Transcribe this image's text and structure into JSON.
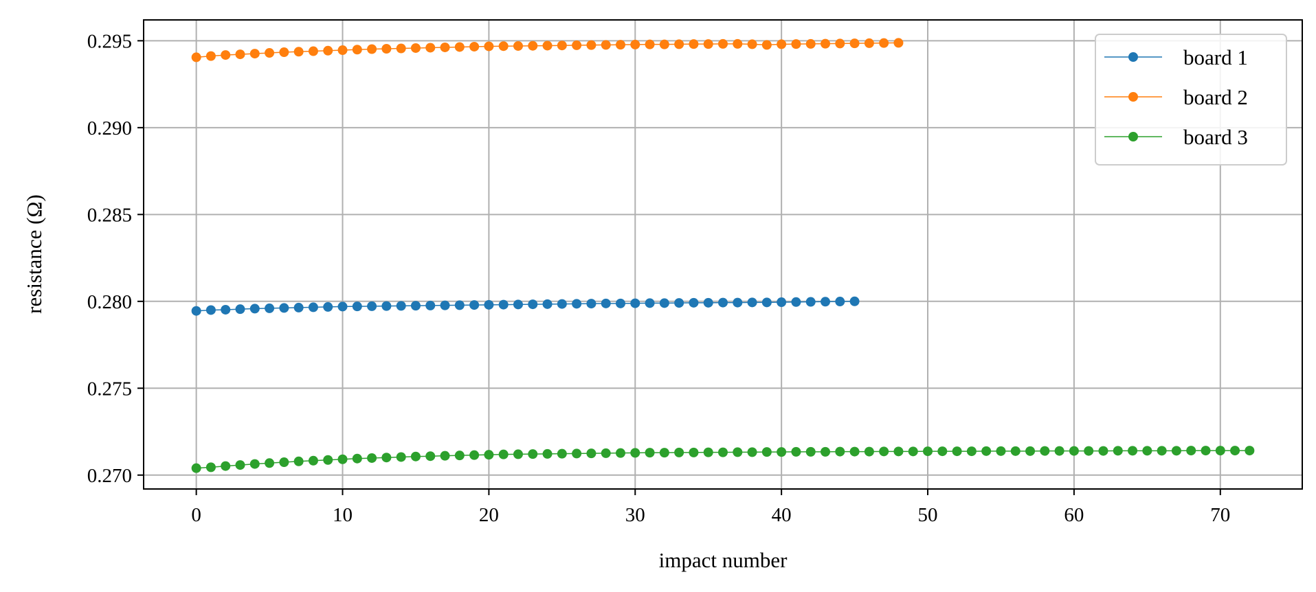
{
  "chart_data": {
    "type": "line",
    "title": "",
    "xlabel": "impact number",
    "ylabel": "resistance (Ω)",
    "xlim": [
      -3.6,
      75.6
    ],
    "ylim": [
      0.2692,
      0.2962
    ],
    "xticks": [
      0,
      10,
      20,
      30,
      40,
      50,
      60,
      70
    ],
    "xtick_labels": [
      "0",
      "10",
      "20",
      "30",
      "40",
      "50",
      "60",
      "70"
    ],
    "yticks": [
      0.27,
      0.275,
      0.28,
      0.285,
      0.29,
      0.295
    ],
    "ytick_labels": [
      "0.270",
      "0.275",
      "0.280",
      "0.285",
      "0.290",
      "0.295"
    ],
    "grid": true,
    "legend_position": "top-right",
    "series": [
      {
        "name": "board 1",
        "color": "#1f77b4",
        "x_start": 0,
        "values": [
          0.27945,
          0.2795,
          0.27952,
          0.27955,
          0.27958,
          0.2796,
          0.27962,
          0.27964,
          0.27966,
          0.27968,
          0.2797,
          0.27971,
          0.27972,
          0.27973,
          0.27974,
          0.27975,
          0.27976,
          0.27977,
          0.27978,
          0.27979,
          0.2798,
          0.27981,
          0.27982,
          0.27983,
          0.27984,
          0.27985,
          0.27986,
          0.27987,
          0.27988,
          0.27988,
          0.27989,
          0.2799,
          0.2799,
          0.27991,
          0.27992,
          0.27992,
          0.27993,
          0.27993,
          0.27994,
          0.27994,
          0.27995,
          0.27996,
          0.27997,
          0.27998,
          0.27999,
          0.28
        ]
      },
      {
        "name": "board 2",
        "color": "#ff7f0e",
        "x_start": 0,
        "values": [
          0.29405,
          0.29412,
          0.29418,
          0.29422,
          0.29426,
          0.2943,
          0.29434,
          0.29437,
          0.2944,
          0.29443,
          0.29446,
          0.29449,
          0.29452,
          0.29454,
          0.29456,
          0.29458,
          0.2946,
          0.29462,
          0.29464,
          0.29466,
          0.29468,
          0.29469,
          0.2947,
          0.29471,
          0.29472,
          0.29473,
          0.29474,
          0.29475,
          0.29476,
          0.29477,
          0.29478,
          0.29479,
          0.29479,
          0.2948,
          0.29481,
          0.29481,
          0.29482,
          0.29482,
          0.2948,
          0.29476,
          0.2948,
          0.29481,
          0.29482,
          0.29483,
          0.29484,
          0.29485,
          0.29486,
          0.29487,
          0.29488
        ]
      },
      {
        "name": "board 3",
        "color": "#2ca02c",
        "x_start": 0,
        "values": [
          0.2704,
          0.27045,
          0.27052,
          0.27058,
          0.27064,
          0.27069,
          0.27074,
          0.27079,
          0.27083,
          0.27087,
          0.27091,
          0.27095,
          0.27098,
          0.27101,
          0.27104,
          0.27107,
          0.27109,
          0.27111,
          0.27113,
          0.27115,
          0.27117,
          0.27119,
          0.2712,
          0.27121,
          0.27122,
          0.27123,
          0.27124,
          0.27125,
          0.27126,
          0.27127,
          0.27128,
          0.27129,
          0.27129,
          0.2713,
          0.2713,
          0.27131,
          0.27131,
          0.27132,
          0.27132,
          0.27133,
          0.27133,
          0.27134,
          0.27134,
          0.27134,
          0.27135,
          0.27135,
          0.27135,
          0.27136,
          0.27136,
          0.27136,
          0.27137,
          0.27137,
          0.27137,
          0.27137,
          0.27138,
          0.27138,
          0.27138,
          0.27138,
          0.27139,
          0.27139,
          0.27139,
          0.27139,
          0.27139,
          0.2714,
          0.2714,
          0.2714,
          0.2714,
          0.2714,
          0.27141,
          0.27141,
          0.27141,
          0.27141,
          0.27141
        ]
      }
    ]
  }
}
